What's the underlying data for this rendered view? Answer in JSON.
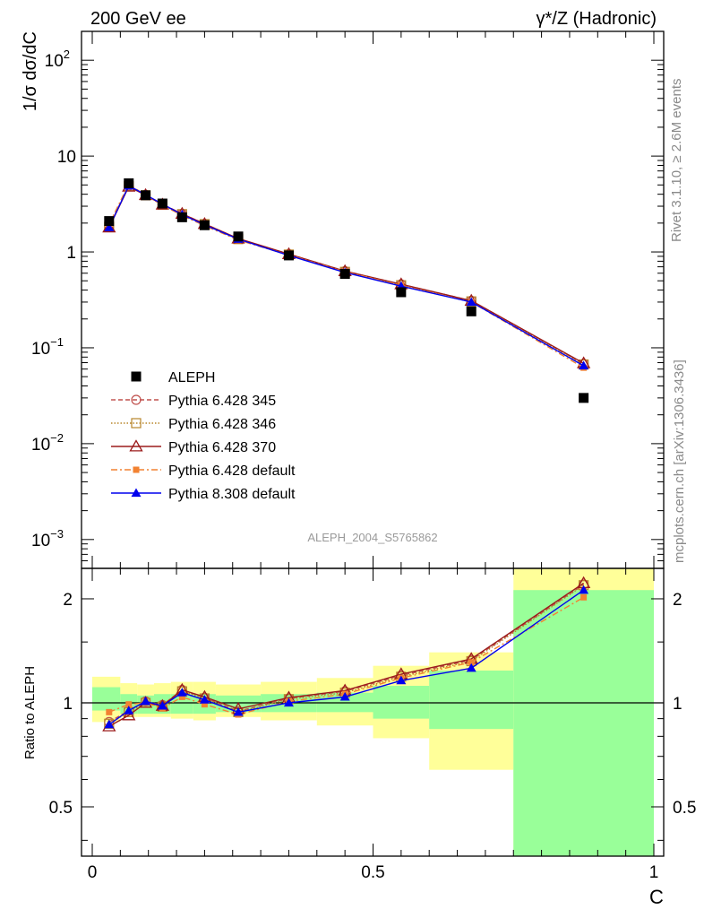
{
  "header": {
    "left": "200 GeV ee",
    "right": "γ*/Z (Hadronic)"
  },
  "side": {
    "rivet": "Rivet 3.1.10, ≥ 2.6M events",
    "mcplots": "mcplots.cern.ch [arXiv:1306.3436]"
  },
  "analysis": "ALEPH_2004_S5765862",
  "chart_data": [
    {
      "type": "scatter",
      "ylabel": "1/σ  dσ/dC",
      "yscale": "log",
      "ylim": [
        0.0005,
        200
      ],
      "xlim": [
        0,
        1
      ],
      "y_ticks": [
        {
          "v": 0.001,
          "m": "10",
          "e": "−3"
        },
        {
          "v": 0.01,
          "m": "10",
          "e": "−2"
        },
        {
          "v": 0.1,
          "m": "10",
          "e": "−1"
        },
        {
          "v": 1,
          "m": "1",
          "e": ""
        },
        {
          "v": 10,
          "m": "10",
          "e": ""
        },
        {
          "v": 100,
          "m": "10",
          "e": "2"
        }
      ],
      "legend_position": "lower-left",
      "series": [
        {
          "name": "ALEPH",
          "color": "#000000",
          "marker": "square",
          "line": "none",
          "x": [
            0.03,
            0.065,
            0.095,
            0.125,
            0.16,
            0.2,
            0.26,
            0.35,
            0.45,
            0.55,
            0.675,
            0.875
          ],
          "y": [
            2.1,
            5.2,
            3.9,
            3.2,
            2.3,
            1.9,
            1.45,
            0.92,
            0.59,
            0.38,
            0.24,
            0.03
          ]
        },
        {
          "name": "Pythia 6.428 345",
          "color": "#c0504d",
          "marker": "circle-open",
          "line": "dashed",
          "x": [
            0.03,
            0.065,
            0.095,
            0.125,
            0.16,
            0.2,
            0.26,
            0.35,
            0.45,
            0.55,
            0.675,
            0.875
          ],
          "y": [
            1.85,
            4.9,
            3.95,
            3.15,
            2.5,
            1.97,
            1.37,
            0.95,
            0.63,
            0.46,
            0.31,
            0.068
          ]
        },
        {
          "name": "Pythia 6.428 346",
          "color": "#b8862b",
          "marker": "square-open",
          "line": "dotted",
          "x": [
            0.03,
            0.065,
            0.095,
            0.125,
            0.16,
            0.2,
            0.26,
            0.35,
            0.45,
            0.55,
            0.675,
            0.875
          ],
          "y": [
            1.83,
            4.85,
            3.9,
            3.1,
            2.48,
            1.95,
            1.36,
            0.94,
            0.62,
            0.45,
            0.305,
            0.067
          ]
        },
        {
          "name": "Pythia 6.428 370",
          "color": "#9b1b1b",
          "marker": "triangle-open",
          "line": "solid",
          "x": [
            0.03,
            0.065,
            0.095,
            0.125,
            0.16,
            0.2,
            0.26,
            0.35,
            0.45,
            0.55,
            0.675,
            0.875
          ],
          "y": [
            1.8,
            4.8,
            3.92,
            3.12,
            2.5,
            1.96,
            1.38,
            0.95,
            0.63,
            0.46,
            0.31,
            0.069
          ]
        },
        {
          "name": "Pythia 6.428 default",
          "color": "#f28232",
          "marker": "square-small",
          "line": "dashdot",
          "x": [
            0.03,
            0.065,
            0.095,
            0.125,
            0.16,
            0.2,
            0.26,
            0.35,
            0.45,
            0.55,
            0.675,
            0.875
          ],
          "y": [
            1.95,
            5.1,
            3.9,
            3.08,
            2.4,
            1.88,
            1.33,
            0.93,
            0.62,
            0.45,
            0.3,
            0.062
          ]
        },
        {
          "name": "Pythia 8.308 default",
          "color": "#0000ee",
          "marker": "triangle",
          "line": "solid",
          "x": [
            0.03,
            0.065,
            0.095,
            0.125,
            0.16,
            0.2,
            0.26,
            0.35,
            0.45,
            0.55,
            0.675,
            0.875
          ],
          "y": [
            1.8,
            4.9,
            3.95,
            3.15,
            2.45,
            1.92,
            1.36,
            0.92,
            0.61,
            0.44,
            0.3,
            0.065
          ]
        }
      ]
    },
    {
      "type": "scatter",
      "ylabel": "Ratio to ALEPH",
      "xlabel": "C",
      "yscale": "log",
      "ylim": [
        0.36,
        2.45
      ],
      "xlim": [
        0,
        1
      ],
      "y_ticks": [
        {
          "v": 0.5,
          "label": "0.5"
        },
        {
          "v": 1,
          "label": "1"
        },
        {
          "v": 2,
          "label": "2"
        }
      ],
      "x_ticks": [
        {
          "v": 0,
          "label": "0"
        },
        {
          "v": 0.5,
          "label": "0.5"
        },
        {
          "v": 1,
          "label": "1"
        }
      ],
      "reference_line": 1,
      "bands": [
        {
          "x0": 0,
          "x1": 0.05,
          "inner": [
            0.95,
            1.11
          ],
          "outer": [
            0.88,
            1.19
          ]
        },
        {
          "x0": 0.05,
          "x1": 0.08,
          "inner": [
            0.93,
            1.06
          ],
          "outer": [
            0.91,
            1.14
          ]
        },
        {
          "x0": 0.08,
          "x1": 0.11,
          "inner": [
            0.93,
            1.05
          ],
          "outer": [
            0.91,
            1.13
          ]
        },
        {
          "x0": 0.11,
          "x1": 0.14,
          "inner": [
            0.93,
            1.06
          ],
          "outer": [
            0.91,
            1.14
          ]
        },
        {
          "x0": 0.14,
          "x1": 0.18,
          "inner": [
            0.93,
            1.06
          ],
          "outer": [
            0.9,
            1.15
          ]
        },
        {
          "x0": 0.18,
          "x1": 0.22,
          "inner": [
            0.93,
            1.06
          ],
          "outer": [
            0.89,
            1.15
          ]
        },
        {
          "x0": 0.22,
          "x1": 0.3,
          "inner": [
            0.94,
            1.05
          ],
          "outer": [
            0.91,
            1.13
          ]
        },
        {
          "x0": 0.3,
          "x1": 0.4,
          "inner": [
            0.94,
            1.06
          ],
          "outer": [
            0.89,
            1.15
          ]
        },
        {
          "x0": 0.4,
          "x1": 0.5,
          "inner": [
            0.94,
            1.07
          ],
          "outer": [
            0.86,
            1.18
          ]
        },
        {
          "x0": 0.5,
          "x1": 0.6,
          "inner": [
            0.9,
            1.12
          ],
          "outer": [
            0.79,
            1.28
          ]
        },
        {
          "x0": 0.6,
          "x1": 0.75,
          "inner": [
            0.84,
            1.24
          ],
          "outer": [
            0.64,
            1.4
          ]
        },
        {
          "x0": 0.75,
          "x1": 1.0,
          "inner": [
            0.36,
            2.12
          ],
          "outer": [
            0.36,
            2.45
          ]
        }
      ],
      "series": [
        {
          "name": "Pythia 6.428 345",
          "color": "#c0504d",
          "marker": "circle-open",
          "line": "dashed",
          "x": [
            0.03,
            0.065,
            0.095,
            0.125,
            0.16,
            0.2,
            0.26,
            0.35,
            0.45,
            0.55,
            0.675,
            0.875
          ],
          "y": [
            0.88,
            0.95,
            1.01,
            0.985,
            1.09,
            1.035,
            0.945,
            1.03,
            1.08,
            1.2,
            1.33,
            2.2
          ]
        },
        {
          "name": "Pythia 6.428 346",
          "color": "#b8862b",
          "marker": "square-open",
          "line": "dotted",
          "x": [
            0.03,
            0.065,
            0.095,
            0.125,
            0.16,
            0.2,
            0.26,
            0.35,
            0.45,
            0.55,
            0.675,
            0.875
          ],
          "y": [
            0.87,
            0.94,
            1.0,
            0.975,
            1.08,
            1.03,
            0.94,
            1.025,
            1.07,
            1.19,
            1.32,
            2.19
          ]
        },
        {
          "name": "Pythia 6.428 370",
          "color": "#9b1b1b",
          "marker": "triangle-open",
          "line": "solid",
          "x": [
            0.03,
            0.065,
            0.095,
            0.125,
            0.16,
            0.2,
            0.26,
            0.35,
            0.45,
            0.55,
            0.675,
            0.875
          ],
          "y": [
            0.855,
            0.92,
            1.0,
            0.98,
            1.09,
            1.04,
            0.96,
            1.035,
            1.085,
            1.21,
            1.34,
            2.22
          ]
        },
        {
          "name": "Pythia 6.428 default",
          "color": "#f28232",
          "marker": "square-small",
          "line": "dashdot",
          "x": [
            0.03,
            0.065,
            0.095,
            0.125,
            0.16,
            0.2,
            0.26,
            0.35,
            0.45,
            0.55,
            0.675,
            0.875
          ],
          "y": [
            0.94,
            0.99,
            1.0,
            0.965,
            1.04,
            0.99,
            0.925,
            1.01,
            1.06,
            1.18,
            1.31,
            2.02
          ]
        },
        {
          "name": "Pythia 8.308 default",
          "color": "#0000ee",
          "marker": "triangle",
          "line": "solid",
          "x": [
            0.03,
            0.065,
            0.095,
            0.125,
            0.16,
            0.2,
            0.26,
            0.35,
            0.45,
            0.55,
            0.675,
            0.875
          ],
          "y": [
            0.865,
            0.95,
            1.01,
            0.98,
            1.07,
            1.02,
            0.94,
            1.0,
            1.04,
            1.16,
            1.26,
            2.12
          ]
        }
      ]
    }
  ]
}
